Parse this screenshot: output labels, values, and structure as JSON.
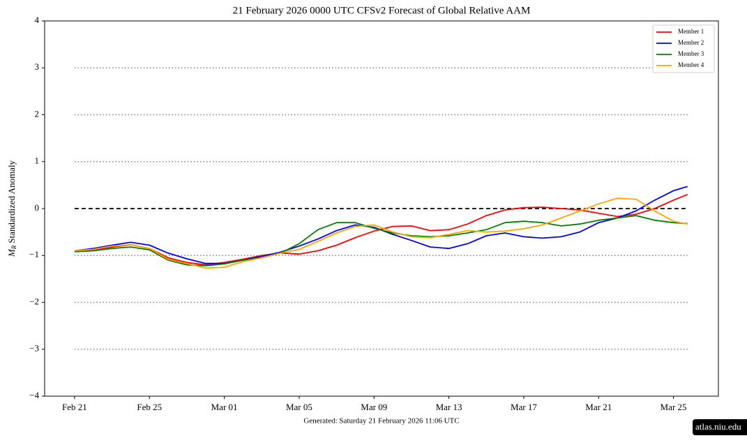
{
  "chart_data": {
    "type": "line",
    "title": "21  February  2026 0000 UTC   CFSv2 Forecast of Global Relative AAM",
    "ylabel_symbol": "M",
    "ylabel_subscript": "R",
    "ylabel_text": "Standardized Anomaly",
    "footer": "Generated: Saturday  21  February  2026  11:06 UTC",
    "watermark": "atlas.niu.edu",
    "x": [
      0,
      1,
      2,
      3,
      4,
      5,
      6,
      7,
      8,
      9,
      10,
      11,
      12,
      13,
      14,
      15,
      16,
      17,
      18,
      19,
      20,
      21,
      22,
      23,
      24,
      25,
      26,
      27,
      28,
      29,
      30,
      31,
      32,
      32.75
    ],
    "xlim": [
      -1.6,
      34.4
    ],
    "xticks": [
      {
        "value": 0,
        "label": "Feb 21"
      },
      {
        "value": 4,
        "label": "Feb 25"
      },
      {
        "value": 8,
        "label": "Mar 01"
      },
      {
        "value": 12,
        "label": "Mar 05"
      },
      {
        "value": 16,
        "label": "Mar 09"
      },
      {
        "value": 20,
        "label": "Mar 13"
      },
      {
        "value": 24,
        "label": "Mar 17"
      },
      {
        "value": 28,
        "label": "Mar 21"
      },
      {
        "value": 32,
        "label": "Mar 25"
      }
    ],
    "ylim": [
      -4,
      4
    ],
    "yticks": [
      {
        "value": -4,
        "label": "−4"
      },
      {
        "value": -3,
        "label": "−3"
      },
      {
        "value": -2,
        "label": "−2"
      },
      {
        "value": -1,
        "label": "−1"
      },
      0,
      1,
      2,
      3,
      4
    ],
    "reference_lines": {
      "dotted": [
        -3,
        -2,
        -1,
        1,
        2,
        3
      ],
      "dashed": [
        0
      ]
    },
    "legend": "upper right",
    "series": [
      {
        "name": "Member 1",
        "color": "#ff0000",
        "values": [
          -0.9,
          -0.88,
          -0.82,
          -0.77,
          -0.85,
          -1.05,
          -1.15,
          -1.2,
          -1.15,
          -1.08,
          -1.0,
          -0.95,
          -0.97,
          -0.9,
          -0.78,
          -0.62,
          -0.48,
          -0.38,
          -0.37,
          -0.47,
          -0.45,
          -0.33,
          -0.15,
          -0.03,
          0.02,
          0.03,
          0.0,
          -0.03,
          -0.1,
          -0.17,
          -0.12,
          0.0,
          0.18,
          0.3
        ]
      },
      {
        "name": "Member 2",
        "color": "#0000ff",
        "values": [
          -0.9,
          -0.85,
          -0.78,
          -0.72,
          -0.78,
          -0.95,
          -1.07,
          -1.17,
          -1.17,
          -1.1,
          -1.02,
          -0.93,
          -0.8,
          -0.65,
          -0.47,
          -0.35,
          -0.4,
          -0.55,
          -0.68,
          -0.82,
          -0.85,
          -0.75,
          -0.58,
          -0.52,
          -0.6,
          -0.63,
          -0.6,
          -0.5,
          -0.3,
          -0.2,
          -0.05,
          0.18,
          0.38,
          0.47
        ]
      },
      {
        "name": "Member 3",
        "color": "#008000",
        "values": [
          -0.92,
          -0.9,
          -0.85,
          -0.82,
          -0.88,
          -1.1,
          -1.2,
          -1.22,
          -1.18,
          -1.1,
          -1.05,
          -0.95,
          -0.75,
          -0.45,
          -0.3,
          -0.3,
          -0.42,
          -0.52,
          -0.58,
          -0.6,
          -0.58,
          -0.52,
          -0.45,
          -0.3,
          -0.27,
          -0.3,
          -0.37,
          -0.33,
          -0.25,
          -0.2,
          -0.15,
          -0.25,
          -0.3,
          -0.32
        ]
      },
      {
        "name": "Member 4",
        "color": "#ffa500",
        "values": [
          -0.9,
          -0.87,
          -0.8,
          -0.77,
          -0.85,
          -1.08,
          -1.17,
          -1.27,
          -1.25,
          -1.13,
          -1.05,
          -0.95,
          -0.87,
          -0.7,
          -0.52,
          -0.38,
          -0.35,
          -0.5,
          -0.6,
          -0.62,
          -0.55,
          -0.47,
          -0.5,
          -0.48,
          -0.43,
          -0.35,
          -0.2,
          -0.05,
          0.1,
          0.22,
          0.2,
          -0.05,
          -0.27,
          -0.33
        ]
      }
    ]
  }
}
